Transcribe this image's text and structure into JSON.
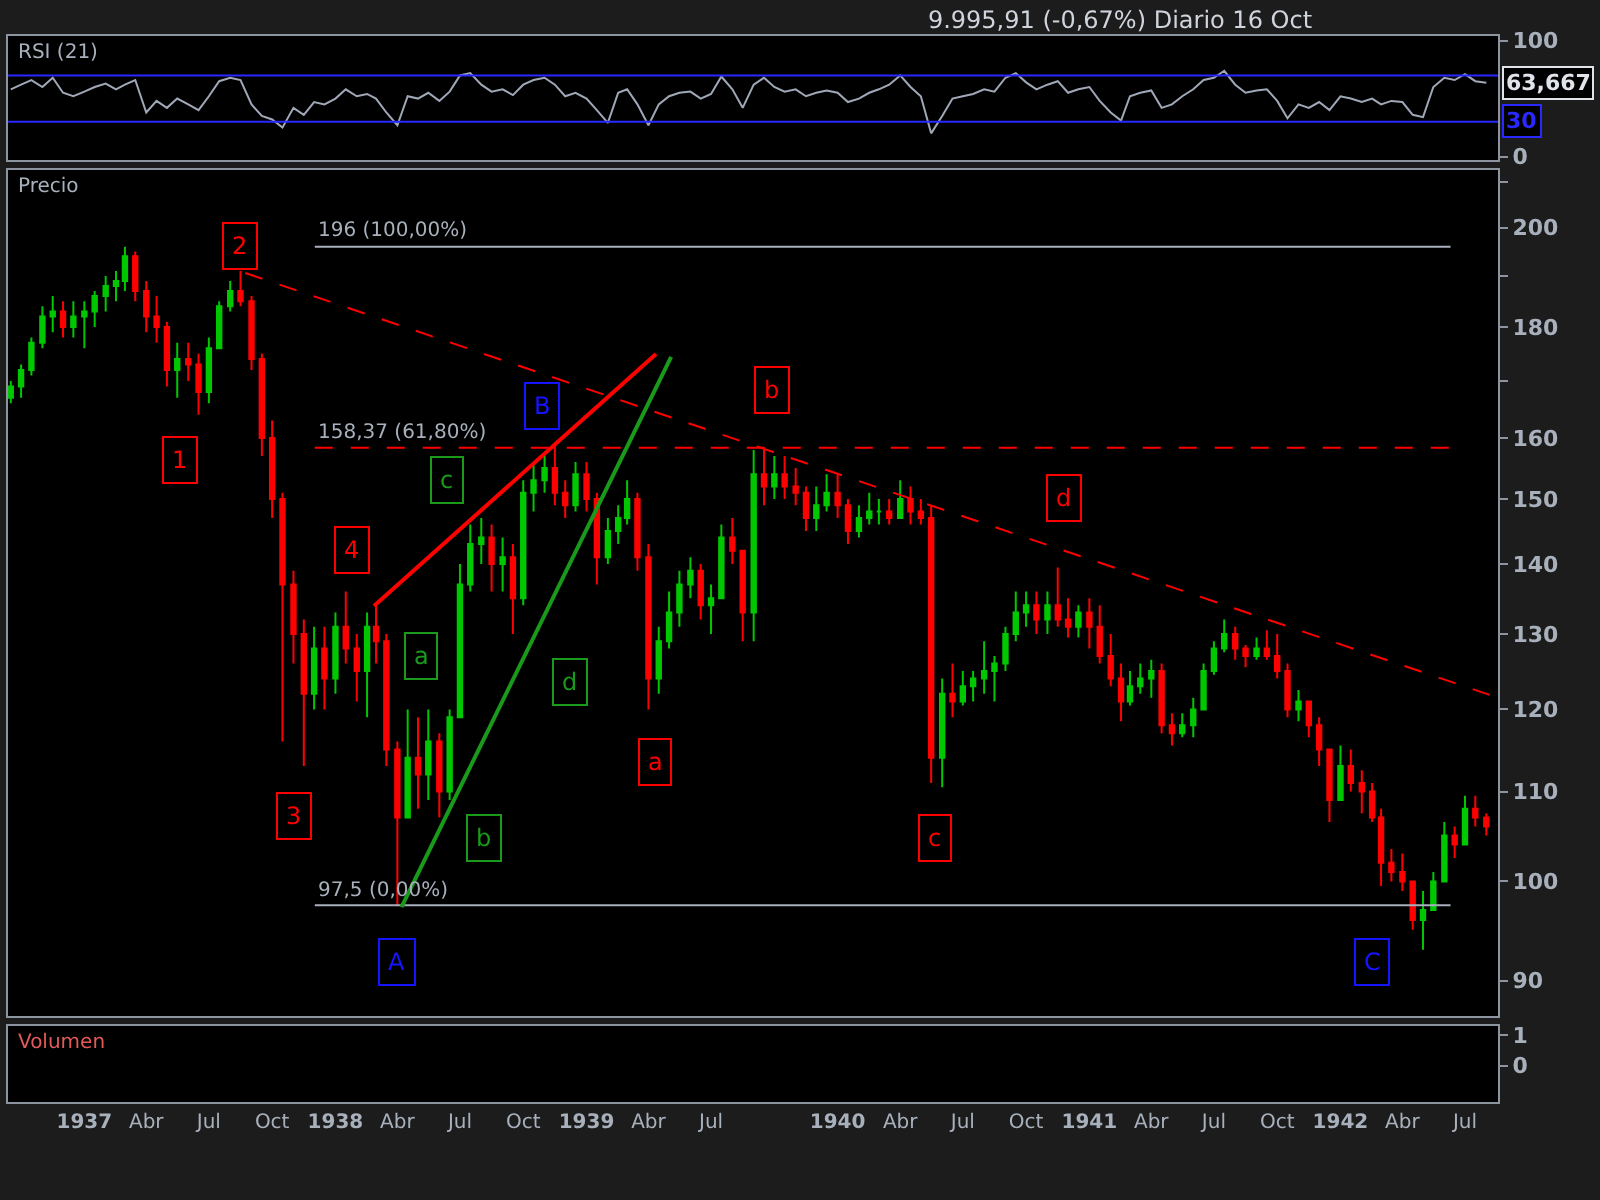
{
  "chart_data": [
    {
      "type": "line",
      "title": "9.995,91 (-0,67%) Diario 16 Oct",
      "subtitle": "RSI (21)",
      "tick_labels": "y",
      "xlim": [
        "1936-09-12",
        "1942-08-18"
      ],
      "ylim": [
        -3,
        104
      ],
      "yticks": [
        0,
        100
      ],
      "x": [
        "1936-09-16",
        "1936-10-01",
        "1936-10-16",
        "1936-11-01",
        "1936-11-16",
        "1936-12-01",
        "1936-12-16",
        "1937-01-01",
        "1937-01-16",
        "1937-02-01",
        "1937-02-16",
        "1937-03-01",
        "1937-03-16",
        "1937-04-01",
        "1937-04-16",
        "1937-05-01",
        "1937-05-16",
        "1937-06-01",
        "1937-06-16",
        "1937-07-01",
        "1937-07-16",
        "1937-08-01",
        "1937-08-16",
        "1937-09-01",
        "1937-09-16",
        "1937-10-01",
        "1937-10-16",
        "1937-11-01",
        "1937-11-16",
        "1937-12-01",
        "1937-12-16",
        "1938-01-01",
        "1938-01-16",
        "1938-02-01",
        "1938-02-16",
        "1938-03-01",
        "1938-03-16",
        "1938-04-01",
        "1938-04-16",
        "1938-05-01",
        "1938-05-16",
        "1938-06-01",
        "1938-06-16",
        "1938-07-01",
        "1938-07-16",
        "1938-08-01",
        "1938-08-16",
        "1938-09-01",
        "1938-09-16",
        "1938-10-01",
        "1938-10-16",
        "1938-11-01",
        "1938-11-16",
        "1938-12-01",
        "1938-12-16",
        "1939-01-01",
        "1939-01-16",
        "1939-02-01",
        "1939-02-16",
        "1939-03-01",
        "1939-03-16",
        "1939-04-01",
        "1939-04-16",
        "1939-05-01",
        "1939-05-16",
        "1939-06-01",
        "1939-06-16",
        "1939-07-01",
        "1939-07-16",
        "1939-08-01",
        "1939-08-16",
        "1939-09-01",
        "1939-09-16",
        "1939-10-01",
        "1939-10-16",
        "1939-11-01",
        "1939-11-16",
        "1939-12-01",
        "1939-12-16",
        "1940-01-01",
        "1940-01-16",
        "1940-02-01",
        "1940-02-16",
        "1940-03-01",
        "1940-03-16",
        "1940-04-01",
        "1940-04-16",
        "1940-05-01",
        "1940-05-16",
        "1940-06-01",
        "1940-06-16",
        "1940-07-01",
        "1940-07-16",
        "1940-08-01",
        "1940-08-16",
        "1940-09-01",
        "1940-09-16",
        "1940-10-01",
        "1940-10-16",
        "1940-11-01",
        "1940-11-16",
        "1940-12-01",
        "1940-12-16",
        "1941-01-01",
        "1941-01-16",
        "1941-02-01",
        "1941-02-16",
        "1941-03-01",
        "1941-03-16",
        "1941-04-01",
        "1941-04-16",
        "1941-05-01",
        "1941-05-16",
        "1941-06-01",
        "1941-06-16",
        "1941-07-01",
        "1941-07-16",
        "1941-08-01",
        "1941-08-16",
        "1941-09-01",
        "1941-09-16",
        "1941-10-01",
        "1941-10-16",
        "1941-11-01",
        "1941-11-16",
        "1941-12-01",
        "1941-12-16",
        "1942-01-01",
        "1942-01-16",
        "1942-02-01",
        "1942-02-16",
        "1942-03-01",
        "1942-03-16",
        "1942-04-01",
        "1942-04-16",
        "1942-05-01",
        "1942-05-16",
        "1942-06-01",
        "1942-06-16",
        "1942-07-01",
        "1942-07-16",
        "1942-08-01"
      ],
      "series": [
        {
          "color": "#a0a8b8",
          "values": [
            58,
            62,
            66,
            60,
            68,
            55,
            52,
            56,
            60,
            63,
            58,
            62,
            66,
            38,
            48,
            42,
            50,
            45,
            40,
            52,
            65,
            68,
            66,
            45,
            35,
            32,
            25,
            42,
            36,
            47,
            45,
            50,
            58,
            52,
            54,
            50,
            38,
            27,
            52,
            50,
            55,
            48,
            56,
            70,
            72,
            62,
            56,
            58,
            53,
            62,
            66,
            68,
            62,
            52,
            55,
            50,
            40,
            29,
            55,
            58,
            45,
            27,
            45,
            52,
            55,
            56,
            50,
            54,
            69,
            58,
            42,
            62,
            68,
            60,
            56,
            58,
            52,
            55,
            57,
            55,
            47,
            50,
            55,
            58,
            62,
            70,
            60,
            52,
            20,
            35,
            50,
            52,
            54,
            58,
            56,
            68,
            72,
            64,
            58,
            62,
            65,
            55,
            58,
            60,
            48,
            38,
            31,
            52,
            55,
            57,
            42,
            45,
            52,
            58,
            66,
            68,
            74,
            62,
            55,
            57,
            58,
            48,
            33,
            45,
            42,
            47,
            40,
            52,
            50,
            47,
            50,
            45,
            48,
            47,
            36,
            34,
            60,
            68,
            66,
            71,
            65,
            63.667
          ]
        }
      ],
      "ref_lines": [
        {
          "axis": "y",
          "value": 70,
          "color": "#2828ff"
        },
        {
          "axis": "y",
          "value": 30,
          "label": "30",
          "color": "#2828ff"
        }
      ],
      "annotations": [
        {
          "text": "63,667",
          "x": "1942-08-18",
          "y": 63.667
        }
      ]
    },
    {
      "type": "candlestick",
      "title": "Precio",
      "tick_labels": "y",
      "log": true,
      "xlim": [
        "1936-09-12",
        "1942-08-18"
      ],
      "ylim": [
        86.7,
        212.6
      ],
      "yticks": [
        90,
        100,
        110,
        120,
        130,
        140,
        150,
        160,
        {
          "value": 170,
          "label": null
        },
        180,
        {
          "value": 190,
          "label": null
        },
        200,
        {
          "value": 210,
          "label": null
        }
      ],
      "x": [
        "1936-09-16",
        "1936-10-01",
        "1936-10-16",
        "1936-11-01",
        "1936-11-16",
        "1936-12-01",
        "1936-12-16",
        "1937-01-01",
        "1937-01-16",
        "1937-02-01",
        "1937-02-16",
        "1937-03-01",
        "1937-03-16",
        "1937-04-01",
        "1937-04-16",
        "1937-05-01",
        "1937-05-16",
        "1937-06-01",
        "1937-06-16",
        "1937-07-01",
        "1937-07-16",
        "1937-08-01",
        "1937-08-16",
        "1937-09-01",
        "1937-09-16",
        "1937-10-01",
        "1937-10-16",
        "1937-11-01",
        "1937-11-16",
        "1937-12-01",
        "1937-12-16",
        "1938-01-01",
        "1938-01-16",
        "1938-02-01",
        "1938-02-16",
        "1938-03-01",
        "1938-03-16",
        "1938-04-01",
        "1938-04-16",
        "1938-05-01",
        "1938-05-16",
        "1938-06-01",
        "1938-06-16",
        "1938-07-01",
        "1938-07-16",
        "1938-08-01",
        "1938-08-16",
        "1938-09-01",
        "1938-09-16",
        "1938-10-01",
        "1938-10-16",
        "1938-11-01",
        "1938-11-16",
        "1938-12-01",
        "1938-12-16",
        "1939-01-01",
        "1939-01-16",
        "1939-02-01",
        "1939-02-16",
        "1939-03-01",
        "1939-03-16",
        "1939-04-01",
        "1939-04-16",
        "1939-05-01",
        "1939-05-16",
        "1939-06-01",
        "1939-06-16",
        "1939-07-01",
        "1939-07-16",
        "1939-08-01",
        "1939-08-16",
        "1939-09-01",
        "1939-09-16",
        "1939-10-01",
        "1939-10-16",
        "1939-11-01",
        "1939-11-16",
        "1939-12-01",
        "1939-12-16",
        "1940-01-01",
        "1940-01-16",
        "1940-02-01",
        "1940-02-16",
        "1940-03-01",
        "1940-03-16",
        "1940-04-01",
        "1940-04-16",
        "1940-05-01",
        "1940-05-16",
        "1940-06-01",
        "1940-06-16",
        "1940-07-01",
        "1940-07-16",
        "1940-08-01",
        "1940-08-16",
        "1940-09-01",
        "1940-09-16",
        "1940-10-01",
        "1940-10-16",
        "1940-11-01",
        "1940-11-16",
        "1940-12-01",
        "1940-12-16",
        "1941-01-01",
        "1941-01-16",
        "1941-02-01",
        "1941-02-16",
        "1941-03-01",
        "1941-03-16",
        "1941-04-01",
        "1941-04-16",
        "1941-05-01",
        "1941-05-16",
        "1941-06-01",
        "1941-06-16",
        "1941-07-01",
        "1941-07-16",
        "1941-08-01",
        "1941-08-16",
        "1941-09-01",
        "1941-09-16",
        "1941-10-01",
        "1941-10-16",
        "1941-11-01",
        "1941-11-16",
        "1941-12-01",
        "1941-12-16",
        "1942-01-01",
        "1942-01-16",
        "1942-02-01",
        "1942-02-16",
        "1942-03-01",
        "1942-03-16",
        "1942-04-01",
        "1942-04-16",
        "1942-05-01",
        "1942-05-16",
        "1942-06-01",
        "1942-06-16",
        "1942-07-01",
        "1942-07-16",
        "1942-08-01"
      ],
      "series": [
        {
          "type": "candlestick",
          "ohlc": [
            [
              167,
              170,
              166,
              169
            ],
            [
              169,
              173,
              167,
              172
            ],
            [
              172,
              178,
              171,
              177
            ],
            [
              177,
              184,
              176,
              182
            ],
            [
              182,
              186,
              179,
              183
            ],
            [
              183,
              185,
              178,
              180
            ],
            [
              180,
              185,
              178,
              182
            ],
            [
              182,
              185,
              176,
              183
            ],
            [
              183,
              187,
              180,
              186
            ],
            [
              186,
              190,
              183,
              188
            ],
            [
              188,
              191,
              185,
              189
            ],
            [
              189,
              196,
              187,
              194
            ],
            [
              194,
              195,
              185,
              187
            ],
            [
              187,
              189,
              179,
              182
            ],
            [
              182,
              186,
              177,
              180
            ],
            [
              180,
              181,
              169,
              172
            ],
            [
              172,
              177,
              167,
              174
            ],
            [
              174,
              177,
              170,
              173
            ],
            [
              173,
              175,
              164,
              168
            ],
            [
              168,
              178,
              166,
              176
            ],
            [
              176,
              185,
              176,
              184
            ],
            [
              184,
              189,
              183,
              187
            ],
            [
              187,
              191,
              184,
              185
            ],
            [
              185,
              186,
              172,
              174
            ],
            [
              174,
              175,
              157,
              160
            ],
            [
              160,
              163,
              147,
              150
            ],
            [
              150,
              151,
              116,
              137
            ],
            [
              137,
              139,
              126,
              130
            ],
            [
              130,
              132,
              113,
              122
            ],
            [
              122,
              131,
              120,
              128
            ],
            [
              128,
              131,
              120,
              124
            ],
            [
              124,
              133,
              122,
              131
            ],
            [
              131,
              136,
              126,
              128
            ],
            [
              128,
              130,
              121,
              125
            ],
            [
              125,
              133,
              119,
              131
            ],
            [
              131,
              134,
              126,
              129
            ],
            [
              129,
              130,
              113,
              115
            ],
            [
              115,
              116,
              97.5,
              107
            ],
            [
              107,
              120,
              107,
              114
            ],
            [
              114,
              119,
              108,
              112
            ],
            [
              112,
              120,
              109,
              116
            ],
            [
              116,
              117,
              107,
              110
            ],
            [
              110,
              120,
              109,
              119
            ],
            [
              119,
              140,
              119,
              137
            ],
            [
              137,
              146,
              136,
              143
            ],
            [
              143,
              147,
              140,
              144
            ],
            [
              144,
              146,
              136,
              140
            ],
            [
              140,
              144,
              136,
              141
            ],
            [
              141,
              143,
              130,
              135
            ],
            [
              135,
              153,
              134,
              151
            ],
            [
              151,
              156,
              148,
              153
            ],
            [
              153,
              157,
              151,
              155
            ],
            [
              155,
              159,
              149,
              151
            ],
            [
              151,
              153,
              147,
              149
            ],
            [
              149,
              156,
              148,
              154
            ],
            [
              154,
              156,
              148,
              150
            ],
            [
              150,
              151,
              137,
              141
            ],
            [
              141,
              147,
              140,
              145
            ],
            [
              145,
              149,
              143,
              147
            ],
            [
              147,
              153,
              146,
              150
            ],
            [
              150,
              151,
              139,
              141
            ],
            [
              141,
              143,
              120,
              124
            ],
            [
              124,
              131,
              122,
              129
            ],
            [
              129,
              136,
              128,
              133
            ],
            [
              133,
              139,
              131,
              137
            ],
            [
              137,
              141,
              135,
              139
            ],
            [
              139,
              140,
              132,
              134
            ],
            [
              134,
              137,
              130,
              135
            ],
            [
              135,
              146,
              135,
              144
            ],
            [
              144,
              147,
              140,
              142
            ],
            [
              142,
              142,
              129,
              133
            ],
            [
              133,
              158,
              129,
              154
            ],
            [
              154,
              158,
              149,
              152
            ],
            [
              152,
              157,
              150,
              154
            ],
            [
              154,
              157,
              150,
              152
            ],
            [
              152,
              155,
              149,
              151
            ],
            [
              151,
              152,
              145,
              147
            ],
            [
              147,
              152,
              145,
              149
            ],
            [
              149,
              154,
              148,
              151
            ],
            [
              151,
              154,
              147,
              149
            ],
            [
              149,
              150,
              143,
              145
            ],
            [
              145,
              149,
              144,
              147
            ],
            [
              147,
              151,
              146,
              148
            ],
            [
              148,
              150,
              146,
              148
            ],
            [
              148,
              150,
              146,
              147
            ],
            [
              147,
              153,
              147,
              150
            ],
            [
              150,
              152,
              146,
              148
            ],
            [
              148,
              150,
              146,
              147
            ],
            [
              147,
              149,
              111,
              114
            ],
            [
              114,
              124,
              110.5,
              122
            ],
            [
              122,
              126,
              119,
              121
            ],
            [
              121,
              125,
              120.5,
              123
            ],
            [
              123,
              125,
              121,
              124
            ],
            [
              124,
              129,
              122,
              125
            ],
            [
              125,
              127,
              121,
              126
            ],
            [
              126,
              131,
              125,
              130
            ],
            [
              130,
              136,
              129,
              133
            ],
            [
              133,
              136,
              131,
              134
            ],
            [
              134,
              136,
              130,
              132
            ],
            [
              132,
              136,
              130,
              134
            ],
            [
              134,
              139.5,
              131,
              132
            ],
            [
              132,
              135,
              129.5,
              131
            ],
            [
              131,
              134,
              129.5,
              133
            ],
            [
              133,
              135,
              128,
              131
            ],
            [
              131,
              134,
              126,
              127
            ],
            [
              127,
              130,
              123,
              124
            ],
            [
              124,
              126,
              118.5,
              121
            ],
            [
              121,
              125,
              120.5,
              123
            ],
            [
              123,
              126,
              122,
              124
            ],
            [
              124,
              126.5,
              121.5,
              125
            ],
            [
              125,
              126,
              117,
              118
            ],
            [
              118,
              119.5,
              115.5,
              117
            ],
            [
              117,
              119.5,
              116.5,
              118
            ],
            [
              118,
              121.5,
              116.5,
              120
            ],
            [
              120,
              126,
              120,
              125
            ],
            [
              125,
              129,
              124.5,
              128
            ],
            [
              128,
              132,
              127.5,
              130
            ],
            [
              130,
              131,
              126.5,
              128
            ],
            [
              128,
              128.5,
              125.5,
              127
            ],
            [
              127,
              129.5,
              126.5,
              128
            ],
            [
              128,
              130.5,
              126.5,
              127
            ],
            [
              127,
              130,
              124,
              125
            ],
            [
              125,
              126,
              119,
              120
            ],
            [
              120,
              122.5,
              118.5,
              121
            ],
            [
              121,
              121,
              116.5,
              118
            ],
            [
              118,
              119,
              113,
              115
            ],
            [
              115,
              115,
              106.5,
              109
            ],
            [
              109,
              115.5,
              109,
              113
            ],
            [
              113,
              115,
              110,
              111
            ],
            [
              111,
              112.5,
              107.5,
              110
            ],
            [
              110,
              111,
              106.5,
              107
            ],
            [
              107,
              108,
              99.5,
              102
            ],
            [
              102,
              103.5,
              100,
              101
            ],
            [
              101,
              103,
              99,
              100
            ],
            [
              100,
              100,
              95,
              96
            ],
            [
              96,
              99,
              93,
              97
            ],
            [
              97,
              101,
              97,
              100
            ],
            [
              100,
              106.5,
              100,
              105
            ],
            [
              105,
              106,
              102.5,
              104
            ],
            [
              104,
              109.5,
              104,
              108
            ],
            [
              108,
              109.5,
              106,
              107
            ],
            [
              107,
              107.5,
              105,
              106
            ]
          ],
          "colors": [
            "#00c800",
            "#00c800",
            "#00c800",
            "#00c800",
            "#00c800",
            "#ff0000",
            "#00c800",
            "#00c800",
            "#00c800",
            "#00c800",
            "#00c800",
            "#00c800",
            "#ff0000",
            "#ff0000",
            "#ff0000",
            "#ff0000",
            "#00c800",
            "#ff0000",
            "#ff0000",
            "#00c800",
            "#00c800",
            "#00c800",
            "#ff0000",
            "#ff0000",
            "#ff0000",
            "#ff0000",
            "#ff0000",
            "#ff0000",
            "#ff0000",
            "#00c800",
            "#ff0000",
            "#00c800",
            "#ff0000",
            "#ff0000",
            "#00c800",
            "#ff0000",
            "#ff0000",
            "#ff0000",
            "#00c800",
            "#ff0000",
            "#00c800",
            "#ff0000",
            "#00c800",
            "#00c800",
            "#00c800",
            "#00c800",
            "#ff0000",
            "#00c800",
            "#ff0000",
            "#00c800",
            "#00c800",
            "#00c800",
            "#ff0000",
            "#ff0000",
            "#00c800",
            "#ff0000",
            "#ff0000",
            "#00c800",
            "#00c800",
            "#00c800",
            "#ff0000",
            "#ff0000",
            "#00c800",
            "#00c800",
            "#00c800",
            "#00c800",
            "#ff0000",
            "#00c800",
            "#00c800",
            "#ff0000",
            "#ff0000",
            "#00c800",
            "#ff0000",
            "#00c800",
            "#ff0000",
            "#ff0000",
            "#ff0000",
            "#00c800",
            "#00c800",
            "#ff0000",
            "#ff0000",
            "#00c800",
            "#00c800",
            "#00c800",
            "#ff0000",
            "#00c800",
            "#ff0000",
            "#ff0000",
            "#ff0000",
            "#00c800",
            "#ff0000",
            "#00c800",
            "#00c800",
            "#00c800",
            "#00c800",
            "#00c800",
            "#00c800",
            "#00c800",
            "#ff0000",
            "#00c800",
            "#ff0000",
            "#ff0000",
            "#00c800",
            "#ff0000",
            "#ff0000",
            "#ff0000",
            "#ff0000",
            "#00c800",
            "#00c800",
            "#00c800",
            "#ff0000",
            "#ff0000",
            "#00c800",
            "#00c800",
            "#00c800",
            "#00c800",
            "#00c800",
            "#ff0000",
            "#ff0000",
            "#00c800",
            "#ff0000",
            "#ff0000",
            "#ff0000",
            "#00c800",
            "#ff0000",
            "#ff0000",
            "#ff0000",
            "#00c800",
            "#ff0000",
            "#ff0000",
            "#ff0000",
            "#ff0000",
            "#ff0000",
            "#ff0000",
            "#ff0000",
            "#00c800",
            "#00c800",
            "#00c800",
            "#ff0000",
            "#00c800",
            "#ff0000",
            "#ff0000"
          ]
        },
        {
          "type": "line",
          "name": "196 (100,00%)",
          "x": [
            "1937-12-02",
            "1942-06-10"
          ],
          "values": [
            196,
            196
          ],
          "color": "#a8b0bc"
        },
        {
          "type": "line",
          "name": "158,37 (61,80%)",
          "x": [
            "1937-12-02",
            "1942-06-10"
          ],
          "values": [
            158.37,
            158.37
          ],
          "color": "#ff0000",
          "line_style": "dashed"
        },
        {
          "type": "line",
          "name": "97,5 (0,00%)",
          "x": [
            "1937-12-02",
            "1942-06-10"
          ],
          "values": [
            97.5,
            97.5
          ],
          "color": "#a8b0bc"
        },
        {
          "type": "line",
          "x": [
            "1937-08-23",
            "1942-08-18"
          ],
          "values": [
            190.6,
            121.5
          ],
          "color": "#ff0000",
          "line_style": "dashed"
        },
        {
          "type": "line",
          "x": [
            "1938-02-26",
            "1939-04-12"
          ],
          "values": [
            133.9,
            174.9
          ],
          "color": "#ff0000"
        },
        {
          "type": "line",
          "x": [
            "1938-04-07",
            "1939-05-04"
          ],
          "values": [
            97.3,
            174.4
          ],
          "color": "#1a9a1a"
        }
      ],
      "annotations": [
        {
          "text": "1",
          "x": "1937-05-19",
          "y": 156.4
        },
        {
          "text": "2",
          "x": "1937-08-16",
          "y": 196
        },
        {
          "text": "3",
          "x": "1937-11-03",
          "y": 107.2
        },
        {
          "text": "4",
          "x": "1938-01-26",
          "y": 142.1
        },
        {
          "text": "a",
          "x": "1938-05-05",
          "y": 127.0
        },
        {
          "text": "b",
          "x": "1938-08-06",
          "y": 104.6
        },
        {
          "text": "c",
          "x": "1938-06-13",
          "y": 153.0
        },
        {
          "text": "d",
          "x": "1938-12-07",
          "y": 123.6
        },
        {
          "text": "A",
          "x": "1938-04-01",
          "y": 91.8
        },
        {
          "text": "B",
          "x": "1938-10-27",
          "y": 165.4
        },
        {
          "text": "C",
          "x": "1942-02-15",
          "y": 91.8
        },
        {
          "text": "a",
          "x": "1939-04-10",
          "y": 113.4
        },
        {
          "text": "b",
          "x": "1939-09-29",
          "y": 168.3
        },
        {
          "text": "c",
          "x": "1940-05-23",
          "y": 104.6
        },
        {
          "text": "d",
          "x": "1940-11-26",
          "y": 150
        }
      ]
    },
    {
      "type": "bar",
      "title": "Volumen",
      "xlim": [
        "1936-09-12",
        "1942-08-18"
      ],
      "ylim": [
        -1.2,
        1.3
      ],
      "yticks": [
        0,
        1
      ],
      "xticks": [
        {
          "value": "1937-01-01",
          "label": "1937"
        },
        {
          "value": "1937-04-01",
          "label": "Abr"
        },
        {
          "value": "1937-07-01",
          "label": "Jul"
        },
        {
          "value": "1937-10-01",
          "label": "Oct"
        },
        {
          "value": "1938-01-01",
          "label": "1938"
        },
        {
          "value": "1938-04-01",
          "label": "Abr"
        },
        {
          "value": "1938-07-01",
          "label": "Jul"
        },
        {
          "value": "1938-10-01",
          "label": "Oct"
        },
        {
          "value": "1939-01-01",
          "label": "1939"
        },
        {
          "value": "1939-04-01",
          "label": "Abr"
        },
        {
          "value": "1939-07-01",
          "label": "Jul"
        },
        {
          "value": "1940-01-01",
          "label": "1940"
        },
        {
          "value": "1940-04-01",
          "label": "Abr"
        },
        {
          "value": "1940-07-01",
          "label": "Jul"
        },
        {
          "value": "1940-10-01",
          "label": "Oct"
        },
        {
          "value": "1941-01-01",
          "label": "1941"
        },
        {
          "value": "1941-04-01",
          "label": "Abr"
        },
        {
          "value": "1941-07-01",
          "label": "Jul"
        },
        {
          "value": "1941-10-01",
          "label": "Oct"
        },
        {
          "value": "1942-01-01",
          "label": "1942"
        },
        {
          "value": "1942-04-01",
          "label": "Abr"
        },
        {
          "value": "1942-07-01",
          "label": "Jul"
        }
      ]
    }
  ]
}
